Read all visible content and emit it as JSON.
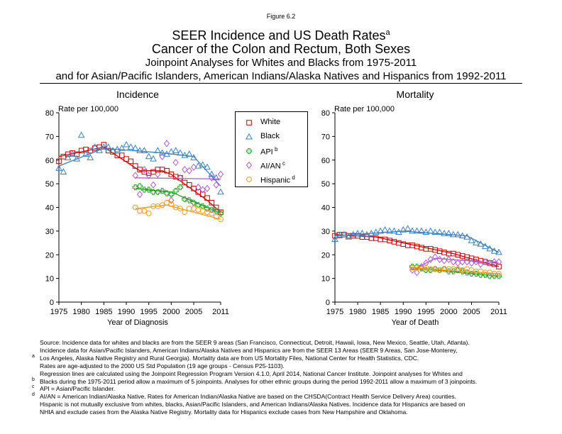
{
  "figure_label": "Figure 6.2",
  "titles": {
    "line1": "SEER Incidence and US Death Rates",
    "line1_sup": "a",
    "line2": "Cancer of the Colon and Rectum, Both Sexes",
    "line3": "Joinpoint Analyses for Whites and Blacks from 1975-2011",
    "line4": "and for Asian/Pacific Islanders, American Indians/Alaska Natives and Hispanics from 1992-2011"
  },
  "legend": [
    {
      "label": "White",
      "sup": "",
      "marker": "square",
      "color": "#cc0000"
    },
    {
      "label": "Black",
      "sup": "",
      "marker": "triangle",
      "color": "#3a7fc0"
    },
    {
      "label": "API",
      "sup": "b",
      "marker": "plus",
      "color": "#2e9e2e"
    },
    {
      "label": "AI/AN",
      "sup": "c",
      "marker": "diamond",
      "color": "#b05ccc"
    },
    {
      "label": "Hispanic",
      "sup": "d",
      "marker": "circle",
      "color": "#f39c1f"
    }
  ],
  "chart_data": [
    {
      "type": "scatter",
      "title": "Incidence",
      "ylabel": "Rate per 100,000",
      "xlabel": "Year of Diagnosis",
      "xlim": [
        1975,
        2011
      ],
      "ylim": [
        0,
        80
      ],
      "x_ticks": [
        1975,
        1980,
        1985,
        1990,
        1995,
        2000,
        2005,
        2011
      ],
      "y_ticks": [
        0,
        10,
        20,
        30,
        40,
        50,
        60,
        70,
        80
      ],
      "grid": false,
      "series": [
        {
          "name": "White",
          "x": [
            1975,
            1976,
            1977,
            1978,
            1979,
            1980,
            1981,
            1982,
            1983,
            1984,
            1985,
            1986,
            1987,
            1988,
            1989,
            1990,
            1991,
            1992,
            1993,
            1994,
            1995,
            1996,
            1997,
            1998,
            1999,
            2000,
            2001,
            2002,
            2003,
            2004,
            2005,
            2006,
            2007,
            2008,
            2009,
            2010,
            2011
          ],
          "y": [
            59.5,
            61.5,
            62.5,
            63,
            62.5,
            64,
            64.5,
            64,
            65,
            65.5,
            66.5,
            64,
            63.5,
            62,
            62,
            60.5,
            59.5,
            57.5,
            56,
            55,
            54.5,
            55,
            56,
            56,
            55.5,
            54,
            53,
            52.5,
            50.5,
            49.5,
            48,
            46.5,
            45.5,
            44,
            42,
            40,
            38
          ],
          "fit_x": [
            1975,
            1985,
            1993,
            1998,
            2000,
            2008,
            2011
          ],
          "fit_y": [
            61.5,
            65.5,
            55.5,
            55.5,
            54,
            43,
            38
          ]
        },
        {
          "name": "Black",
          "x": [
            1975,
            1976,
            1977,
            1978,
            1979,
            1980,
            1981,
            1982,
            1983,
            1984,
            1985,
            1986,
            1987,
            1988,
            1989,
            1990,
            1991,
            1992,
            1993,
            1994,
            1995,
            1996,
            1997,
            1998,
            1999,
            2000,
            2001,
            2002,
            2003,
            2004,
            2005,
            2006,
            2007,
            2008,
            2009,
            2010,
            2011
          ],
          "y": [
            56.5,
            55,
            61,
            62.5,
            60.5,
            70.5,
            62.5,
            61,
            65.5,
            64,
            65.5,
            65.5,
            64,
            64.5,
            65,
            66.5,
            65.5,
            65,
            64,
            64,
            61.5,
            60.5,
            64,
            63,
            62.5,
            63.5,
            64,
            63,
            62,
            62.5,
            61,
            57.5,
            58,
            57,
            54,
            52.5,
            46.5
          ],
          "fit_x": [
            1975,
            1985,
            1998,
            2005,
            2011
          ],
          "fit_y": [
            57.5,
            65,
            63,
            61.5,
            49
          ]
        },
        {
          "name": "API",
          "x": [
            1992,
            1993,
            1994,
            1995,
            1996,
            1997,
            1998,
            1999,
            2000,
            2001,
            2002,
            2003,
            2004,
            2005,
            2006,
            2007,
            2008,
            2009,
            2010,
            2011
          ],
          "y": [
            48.5,
            49,
            47.5,
            47.5,
            46.5,
            46.5,
            47,
            46,
            45.5,
            47,
            48.5,
            43.5,
            43,
            42,
            41,
            40.5,
            39.5,
            39,
            38.5,
            37.5
          ],
          "fit_x": [
            1992,
            2000,
            2011
          ],
          "fit_y": [
            48,
            46.5,
            37.5
          ]
        },
        {
          "name": "AI/AN",
          "x": [
            1992,
            1993,
            1994,
            1995,
            1996,
            1997,
            1998,
            1999,
            2000,
            2001,
            2002,
            2003,
            2004,
            2005,
            2006,
            2007,
            2008,
            2009,
            2010,
            2011
          ],
          "y": [
            53.5,
            45.5,
            56,
            53.5,
            49.5,
            54,
            61.5,
            67,
            43,
            59,
            52.5,
            56,
            55.5,
            57,
            48.5,
            47.5,
            48,
            52.5,
            49.5,
            54
          ],
          "fit_x": [
            1992,
            2011
          ],
          "fit_y": [
            52.5,
            52
          ]
        },
        {
          "name": "Hispanic",
          "x": [
            1992,
            1993,
            1994,
            1995,
            1996,
            1997,
            1998,
            1999,
            2000,
            2001,
            2002,
            2003,
            2004,
            2005,
            2006,
            2007,
            2008,
            2009,
            2010,
            2011
          ],
          "y": [
            40,
            38.5,
            38.5,
            37.5,
            40.5,
            40.5,
            41,
            42,
            41.5,
            40,
            39.5,
            38,
            39.5,
            39.5,
            39,
            38.5,
            38,
            37.5,
            36,
            35
          ],
          "fit_x": [
            1992,
            1999,
            2011
          ],
          "fit_y": [
            39.5,
            41,
            35
          ]
        }
      ]
    },
    {
      "type": "scatter",
      "title": "Mortality",
      "ylabel": "Rate per 100,000",
      "xlabel": "Year of Death",
      "xlim": [
        1975,
        2011
      ],
      "ylim": [
        0,
        80
      ],
      "x_ticks": [
        1975,
        1980,
        1985,
        1990,
        1995,
        2000,
        2005,
        2011
      ],
      "y_ticks": [
        0,
        10,
        20,
        30,
        40,
        50,
        60,
        70,
        80
      ],
      "grid": false,
      "series": [
        {
          "name": "White",
          "x": [
            1975,
            1976,
            1977,
            1978,
            1979,
            1980,
            1981,
            1982,
            1983,
            1984,
            1985,
            1986,
            1987,
            1988,
            1989,
            1990,
            1991,
            1992,
            1993,
            1994,
            1995,
            1996,
            1997,
            1998,
            1999,
            2000,
            2001,
            2002,
            2003,
            2004,
            2005,
            2006,
            2007,
            2008,
            2009,
            2010,
            2011
          ],
          "y": [
            28,
            28.5,
            28.5,
            28,
            28,
            28,
            27.5,
            27.5,
            27,
            27,
            26.5,
            26.5,
            26,
            25.5,
            25,
            24.5,
            24,
            24,
            23.5,
            23,
            22.5,
            22.5,
            22,
            21.5,
            21,
            20.5,
            20.5,
            20,
            19.5,
            19,
            18.5,
            18,
            17.5,
            17,
            16.5,
            16,
            15
          ],
          "fit_x": [
            1975,
            1984,
            2001,
            2011
          ],
          "fit_y": [
            28.5,
            27.5,
            20.5,
            15
          ]
        },
        {
          "name": "Black",
          "x": [
            1975,
            1976,
            1977,
            1978,
            1979,
            1980,
            1981,
            1982,
            1983,
            1984,
            1985,
            1986,
            1987,
            1988,
            1989,
            1990,
            1991,
            1992,
            1993,
            1994,
            1995,
            1996,
            1997,
            1998,
            1999,
            2000,
            2001,
            2002,
            2003,
            2004,
            2005,
            2006,
            2007,
            2008,
            2009,
            2010,
            2011
          ],
          "y": [
            26.5,
            28,
            28.5,
            27.5,
            28.5,
            29,
            29,
            28.5,
            29,
            29.5,
            30,
            30.5,
            30,
            30,
            29.5,
            30.5,
            31,
            30,
            30,
            30,
            29.5,
            30,
            29.5,
            29.5,
            29,
            29,
            28.5,
            28.5,
            28,
            27.5,
            26,
            25,
            24.5,
            23.5,
            22.5,
            21.5,
            21
          ],
          "fit_x": [
            1975,
            1990,
            2004,
            2011
          ],
          "fit_y": [
            28,
            30,
            28,
            21
          ]
        },
        {
          "name": "API",
          "x": [
            1992,
            1993,
            1994,
            1995,
            1996,
            1997,
            1998,
            1999,
            2000,
            2001,
            2002,
            2003,
            2004,
            2005,
            2006,
            2007,
            2008,
            2009,
            2010,
            2011
          ],
          "y": [
            15,
            15,
            14.5,
            13.5,
            13.5,
            14,
            13.5,
            14,
            13,
            13,
            13.5,
            13,
            12.5,
            12,
            12,
            11.5,
            11.5,
            11,
            11,
            11
          ],
          "fit_x": [
            1992,
            2011
          ],
          "fit_y": [
            14.5,
            11
          ]
        },
        {
          "name": "AI/AN",
          "x": [
            1992,
            1993,
            1994,
            1995,
            1996,
            1997,
            1998,
            1999,
            2000,
            2001,
            2002,
            2003,
            2004,
            2005,
            2006,
            2007,
            2008,
            2009,
            2010,
            2011
          ],
          "y": [
            13.5,
            12.5,
            15,
            16.5,
            18,
            19,
            18,
            17.5,
            18,
            17,
            16.5,
            17,
            17,
            16.5,
            17,
            16,
            17,
            16.5,
            17,
            17
          ],
          "fit_x": [
            1992,
            1997,
            2011
          ],
          "fit_y": [
            13.5,
            18.5,
            16.5
          ]
        },
        {
          "name": "Hispanic",
          "x": [
            1992,
            1993,
            1994,
            1995,
            1996,
            1997,
            1998,
            1999,
            2000,
            2001,
            2002,
            2003,
            2004,
            2005,
            2006,
            2007,
            2008,
            2009,
            2010,
            2011
          ],
          "y": [
            14.5,
            14.5,
            14,
            14.5,
            14,
            14,
            13.5,
            14,
            14,
            14,
            14,
            13.5,
            14,
            13.5,
            13,
            13,
            12.5,
            12.5,
            12,
            12
          ],
          "fit_x": [
            1992,
            2011
          ],
          "fit_y": [
            14.5,
            12
          ]
        }
      ]
    }
  ],
  "notes": [
    {
      "mark": "",
      "text": "Source:  Incidence data for whites and blacks are from the SEER 9 areas (San Francisco, Connecticut, Detroit, Hawaii, Iowa, New Mexico, Seattle, Utah, Atlanta)."
    },
    {
      "mark": "",
      "text": "Incidence data for Asian/Pacific Islanders, American Indians/Alaska Natives and Hispanics are from the SEER 13 Areas (SEER 9 Areas, San Jose-Monterey,"
    },
    {
      "mark": "a",
      "text": "Los Angeles, Alaska Native Registry and Rural Georgia).  Mortality data are from US Mortality Files, National Center for Health Statistics, CDC."
    },
    {
      "mark": "",
      "text": "Rates are age-adjusted to the 2000 US Std Population (19 age groups - Census P25-1103)."
    },
    {
      "mark": "",
      "text": "Regression lines are calculated using the Joinpoint Regression Program Version 4.1.0, April 2014, National Cancer Institute.  Joinpoint analyses for Whites and"
    },
    {
      "mark": "b",
      "text": "Blacks during the 1975-2011 period allow a maximum of 5 joinpoints.  Analyses for other ethnic groups during the period 1992-2011 allow a maximum of 3 joinpoints."
    },
    {
      "mark": "c",
      "text": "API = Asian/Pacific Islander."
    },
    {
      "mark": "d",
      "text": "AI/AN = American Indian/Alaska Native.  Rates for American Indian/Alaska Native are based on the CHSDA(Contract Health Service Delivery Area) counties."
    },
    {
      "mark": "",
      "text": "Hispanic is not mutually exclusive from whites, blacks, Asian/Pacific Islanders, and American Indians/Alaska Natives.  Incidence data for Hispanics are based on"
    },
    {
      "mark": "",
      "text": "NHIA and exclude cases from the Alaska Native Registry.  Mortality data for Hispanics exclude cases from New Hampshire and Oklahoma."
    }
  ]
}
